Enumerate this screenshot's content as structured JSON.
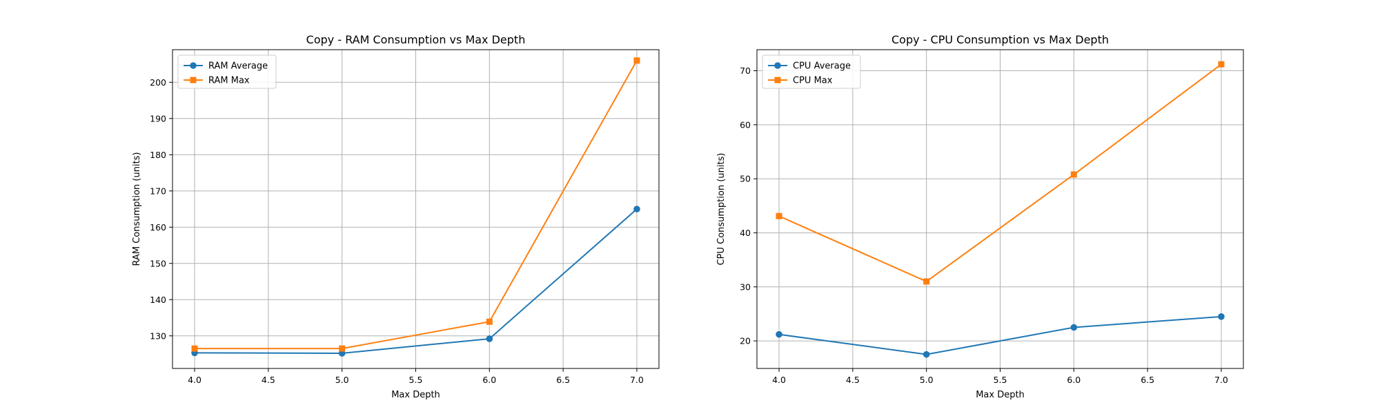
{
  "chart_data": [
    {
      "type": "line",
      "title": "Copy - RAM Consumption vs Max Depth",
      "xlabel": "Max Depth",
      "ylabel": "RAM Consumption (units)",
      "xlim": [
        3.85,
        7.15
      ],
      "ylim": [
        121,
        209
      ],
      "xticks": [
        4.0,
        4.5,
        5.0,
        5.5,
        6.0,
        6.5,
        7.0
      ],
      "xtick_labels": [
        "4.0",
        "4.5",
        "5.0",
        "5.5",
        "6.0",
        "6.5",
        "7.0"
      ],
      "yticks": [
        130,
        140,
        150,
        160,
        170,
        180,
        190,
        200
      ],
      "ytick_labels": [
        "130",
        "140",
        "150",
        "160",
        "170",
        "180",
        "190",
        "200"
      ],
      "grid": true,
      "legend_position": "upper-left",
      "x": [
        4.0,
        5.0,
        6.0,
        7.0
      ],
      "series": [
        {
          "name": "RAM Average",
          "values": [
            125.3,
            125.2,
            129.2,
            165.0
          ],
          "color": "#1f77b4",
          "marker": "circle"
        },
        {
          "name": "RAM Max",
          "values": [
            126.5,
            126.5,
            133.9,
            206.0
          ],
          "color": "#ff7f0e",
          "marker": "square"
        }
      ]
    },
    {
      "type": "line",
      "title": "Copy - CPU Consumption vs Max Depth",
      "xlabel": "Max Depth",
      "ylabel": "CPU Consumption (units)",
      "xlim": [
        3.85,
        7.15
      ],
      "ylim": [
        14.9,
        73.9
      ],
      "xticks": [
        4.0,
        4.5,
        5.0,
        5.5,
        6.0,
        6.5,
        7.0
      ],
      "xtick_labels": [
        "4.0",
        "4.5",
        "5.0",
        "5.5",
        "6.0",
        "6.5",
        "7.0"
      ],
      "yticks": [
        20,
        30,
        40,
        50,
        60,
        70
      ],
      "ytick_labels": [
        "20",
        "30",
        "40",
        "50",
        "60",
        "70"
      ],
      "grid": true,
      "legend_position": "upper-left",
      "x": [
        4.0,
        5.0,
        6.0,
        7.0
      ],
      "series": [
        {
          "name": "CPU Average",
          "values": [
            21.2,
            17.5,
            22.5,
            24.5
          ],
          "color": "#1f77b4",
          "marker": "circle"
        },
        {
          "name": "CPU Max",
          "values": [
            43.1,
            31.0,
            50.8,
            71.2
          ],
          "color": "#ff7f0e",
          "marker": "square"
        }
      ]
    }
  ]
}
